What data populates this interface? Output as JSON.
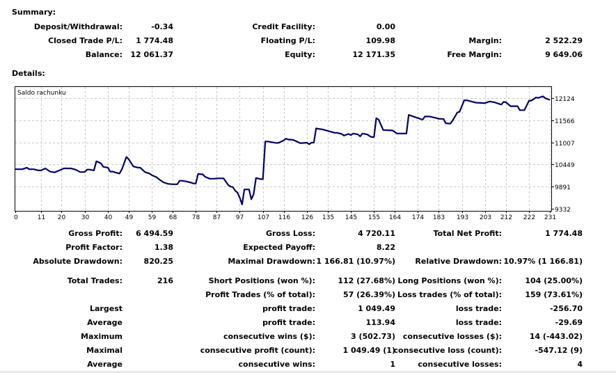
{
  "summary": {
    "title": "Summary:",
    "rows": [
      [
        {
          "label": "Deposit/Withdrawal:",
          "value": "-0.34"
        },
        {
          "label": "Credit Facility:",
          "value": "0.00"
        },
        {
          "label": "",
          "value": ""
        }
      ],
      [
        {
          "label": "Closed Trade P/L:",
          "value": "1 774.48"
        },
        {
          "label": "Floating P/L:",
          "value": "109.98"
        },
        {
          "label": "Margin:",
          "value": "2 522.29"
        }
      ],
      [
        {
          "label": "Balance:",
          "value": "12 061.37"
        },
        {
          "label": "Equity:",
          "value": "12 171.35"
        },
        {
          "label": "Free Margin:",
          "value": "9 649.06"
        }
      ]
    ]
  },
  "details": {
    "title": "Details:",
    "rows": [
      [
        {
          "label": "Gross Profit:",
          "value": "6 494.59"
        },
        {
          "label": "Gross Loss:",
          "value": "4 720.11"
        },
        {
          "label": "Total Net Profit:",
          "value": "1 774.48"
        }
      ],
      [
        {
          "label": "Profit Factor:",
          "value": "1.38"
        },
        {
          "label": "Expected Payoff:",
          "value": "8.22"
        },
        {
          "label": "",
          "value": ""
        }
      ],
      [
        {
          "label": "Absolute Drawdown:",
          "value": "820.25"
        },
        {
          "label": "Maximal Drawdown:",
          "value": "1 166.81 (10.97%)"
        },
        {
          "label": "Relative Drawdown:",
          "value": "10.97% (1 166.81)"
        }
      ],
      [
        {
          "label": "Total Trades:",
          "value": "216"
        },
        {
          "label": "Short Positions (won %):",
          "value": "112 (27.68%)"
        },
        {
          "label": "Long Positions (won %):",
          "value": "104 (25.00%)"
        }
      ],
      [
        {
          "label": "",
          "value": ""
        },
        {
          "label": "Profit Trades (% of total):",
          "value": "57 (26.39%)"
        },
        {
          "label": "Loss trades (% of total):",
          "value": "159 (73.61%)"
        }
      ],
      [
        {
          "label": "Largest",
          "value": ""
        },
        {
          "label": "profit trade:",
          "value": "1 049.49"
        },
        {
          "label": "loss trade:",
          "value": "-256.70"
        }
      ],
      [
        {
          "label": "Average",
          "value": ""
        },
        {
          "label": "profit trade:",
          "value": "113.94"
        },
        {
          "label": "loss trade:",
          "value": "-29.69"
        }
      ],
      [
        {
          "label": "Maximum",
          "value": ""
        },
        {
          "label": "consecutive wins ($):",
          "value": "3 (502.73)"
        },
        {
          "label": "consecutive losses ($):",
          "value": "14 (-443.02)"
        }
      ],
      [
        {
          "label": "Maximal",
          "value": ""
        },
        {
          "label": "consecutive profit (count):",
          "value": "1 049.49 (1)"
        },
        {
          "label": "consecutive loss (count):",
          "value": "-547.12 (9)"
        }
      ],
      [
        {
          "label": "Average",
          "value": ""
        },
        {
          "label": "consecutive wins:",
          "value": "1"
        },
        {
          "label": "consecutive losses:",
          "value": "4"
        }
      ]
    ]
  },
  "chart_data": {
    "type": "line",
    "title": "Saldo rachunku",
    "xlabel": "",
    "ylabel": "",
    "grid": true,
    "legend": "none",
    "line_color": "#000066",
    "x_ticks": [
      0,
      11,
      20,
      30,
      40,
      49,
      59,
      68,
      78,
      87,
      97,
      107,
      116,
      126,
      135,
      145,
      155,
      164,
      174,
      183,
      193,
      203,
      212,
      222,
      231
    ],
    "y_ticks": [
      12124,
      11566,
      11007,
      10449,
      9891,
      9332
    ],
    "xlim": [
      0,
      231
    ],
    "ylim": [
      9332,
      12124
    ],
    "series": [
      {
        "name": "Saldo rachunku",
        "x": [
          0,
          3,
          5,
          6,
          8,
          10,
          11,
          13,
          15,
          17,
          19,
          21,
          24,
          26,
          28,
          30,
          31,
          32,
          34,
          35,
          37,
          38,
          40,
          41,
          42,
          45,
          46,
          48,
          49,
          51,
          53,
          54,
          56,
          57,
          58,
          59,
          61,
          62,
          63,
          64,
          66,
          68,
          70,
          71,
          72,
          74,
          76,
          77,
          78,
          79,
          81,
          82,
          84,
          86,
          87,
          89,
          90,
          92,
          93,
          94,
          95,
          96,
          97,
          98,
          99,
          101,
          102,
          103,
          104,
          106,
          107,
          108,
          109,
          111,
          113,
          114,
          116,
          117,
          118,
          120,
          122,
          123,
          124,
          126,
          127,
          128,
          129,
          130,
          131,
          132,
          133,
          136,
          138,
          139,
          141,
          142,
          144,
          145,
          146,
          148,
          149,
          150,
          152,
          153,
          154,
          155,
          156,
          157,
          159,
          162,
          163,
          165,
          166,
          167,
          169,
          170,
          172,
          174,
          176,
          177,
          179,
          182,
          183,
          185,
          186,
          188,
          189,
          191,
          192,
          194,
          195,
          197,
          199,
          202,
          203,
          205,
          207,
          208,
          210,
          211,
          212,
          214,
          216,
          217,
          218,
          220,
          222,
          223,
          225,
          226,
          228,
          229,
          231
        ],
        "y": [
          10330,
          10330,
          10370,
          10330,
          10330,
          10300,
          10300,
          10350,
          10270,
          10250,
          10300,
          10350,
          10350,
          10320,
          10260,
          10260,
          10320,
          10320,
          10300,
          10530,
          10480,
          10390,
          10370,
          10270,
          10270,
          10220,
          10320,
          10640,
          10580,
          10400,
          10370,
          10370,
          10260,
          10240,
          10220,
          10180,
          10130,
          10080,
          10040,
          10000,
          9960,
          9950,
          9950,
          10040,
          10040,
          10020,
          9990,
          9970,
          9970,
          10210,
          10200,
          10140,
          10090,
          10090,
          10100,
          10100,
          10100,
          9930,
          9890,
          9880,
          9790,
          9740,
          9610,
          9440,
          9820,
          9820,
          9570,
          9700,
          10110,
          10080,
          10080,
          11030,
          11030,
          11010,
          10990,
          11000,
          11060,
          11100,
          11080,
          11070,
          11020,
          10990,
          10990,
          11000,
          10960,
          11000,
          11000,
          11360,
          11350,
          11340,
          11330,
          11280,
          11250,
          11250,
          11220,
          11180,
          11220,
          11190,
          11230,
          11210,
          11160,
          11230,
          11210,
          11170,
          11140,
          11140,
          11620,
          11580,
          11320,
          11310,
          11310,
          11230,
          11230,
          11230,
          11230,
          11700,
          11660,
          11620,
          11580,
          11660,
          11660,
          11620,
          11600,
          11600,
          11490,
          11480,
          11560,
          11760,
          11780,
          12070,
          12070,
          12040,
          12010,
          12000,
          12000,
          12040,
          12020,
          12000,
          11960,
          12030,
          12020,
          11920,
          11920,
          11920,
          11820,
          11820,
          12060,
          12060,
          12140,
          12130,
          12170,
          12120,
          12080
        ]
      }
    ]
  }
}
